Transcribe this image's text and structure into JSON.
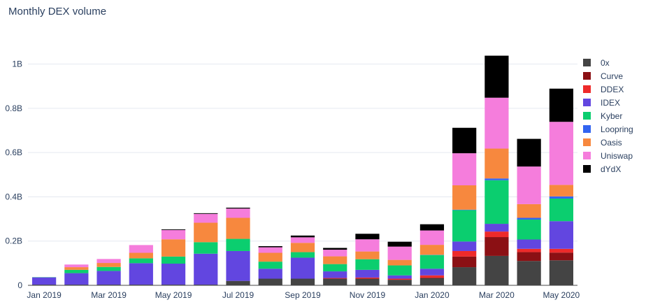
{
  "chart_data": {
    "type": "bar",
    "stacked": true,
    "title": "Monthly DEX volume",
    "xlabel": "",
    "ylabel": "",
    "ylim": [
      0,
      1100000000
    ],
    "y_ticks": [
      0,
      200000000,
      400000000,
      600000000,
      800000000,
      1000000000
    ],
    "y_tick_labels": [
      "0",
      "0.2B",
      "0.4B",
      "0.6B",
      "0.8B",
      "1B"
    ],
    "grid": true,
    "legend_position": "right",
    "categories": [
      "Jan 2019",
      "Feb 2019",
      "Mar 2019",
      "Apr 2019",
      "May 2019",
      "Jun 2019",
      "Jul 2019",
      "Aug 2019",
      "Sep 2019",
      "Oct 2019",
      "Nov 2019",
      "Dec 2019",
      "Jan 2020",
      "Feb 2020",
      "Mar 2020",
      "Apr 2020",
      "May 2020"
    ],
    "x_tick_labels": [
      {
        "index": 0,
        "label": "Jan 2019"
      },
      {
        "index": 2,
        "label": "Mar 2019"
      },
      {
        "index": 4,
        "label": "May 2019"
      },
      {
        "index": 6,
        "label": "Jul 2019"
      },
      {
        "index": 8,
        "label": "Sep 2019"
      },
      {
        "index": 10,
        "label": "Nov 2019"
      },
      {
        "index": 12,
        "label": "Jan 2020"
      },
      {
        "index": 14,
        "label": "Mar 2020"
      },
      {
        "index": 16,
        "label": "May 2020"
      }
    ],
    "series": [
      {
        "name": "0x",
        "color": "#444444",
        "values": [
          3000000,
          3000000,
          3000000,
          3000000,
          3000000,
          3000000,
          20000000,
          30000000,
          30000000,
          30000000,
          30000000,
          25000000,
          32000000,
          82000000,
          133000000,
          110000000,
          113000000
        ]
      },
      {
        "name": "Curve",
        "color": "#8b1014",
        "values": [
          0,
          0,
          0,
          0,
          0,
          0,
          0,
          0,
          0,
          0,
          0,
          0,
          3000000,
          48000000,
          85000000,
          40000000,
          35000000
        ]
      },
      {
        "name": "DDEX",
        "color": "#ee2a2a",
        "values": [
          0,
          0,
          0,
          0,
          0,
          0,
          0,
          0,
          0,
          3000000,
          5000000,
          5000000,
          10000000,
          25000000,
          25000000,
          15000000,
          17000000
        ]
      },
      {
        "name": "IDEX",
        "color": "#6246e0",
        "values": [
          33000000,
          52000000,
          62000000,
          97000000,
          95000000,
          140000000,
          135000000,
          45000000,
          95000000,
          30000000,
          35000000,
          15000000,
          30000000,
          43000000,
          35000000,
          42000000,
          125000000
        ]
      },
      {
        "name": "Kyber",
        "color": "#0bce6f",
        "values": [
          1000000,
          15000000,
          18000000,
          22000000,
          32000000,
          52000000,
          55000000,
          32000000,
          25000000,
          33000000,
          48000000,
          45000000,
          62000000,
          142000000,
          197000000,
          90000000,
          102000000
        ]
      },
      {
        "name": "Loopring",
        "color": "#3264f0",
        "values": [
          0,
          0,
          0,
          0,
          0,
          0,
          0,
          0,
          0,
          0,
          0,
          0,
          1000000,
          2000000,
          8000000,
          8000000,
          10000000
        ]
      },
      {
        "name": "Oasis",
        "color": "#f7883e",
        "values": [
          0,
          12000000,
          18000000,
          25000000,
          78000000,
          88000000,
          95000000,
          40000000,
          42000000,
          35000000,
          35000000,
          25000000,
          45000000,
          110000000,
          135000000,
          62000000,
          52000000
        ]
      },
      {
        "name": "Uniswap",
        "color": "#f57ddc",
        "values": [
          0,
          12000000,
          18000000,
          35000000,
          42000000,
          40000000,
          42000000,
          25000000,
          25000000,
          30000000,
          55000000,
          60000000,
          65000000,
          145000000,
          230000000,
          170000000,
          285000000
        ]
      },
      {
        "name": "dYdX",
        "color": "#000000",
        "values": [
          0,
          0,
          0,
          0,
          3000000,
          3000000,
          4000000,
          5000000,
          8000000,
          8000000,
          25000000,
          22000000,
          28000000,
          115000000,
          190000000,
          125000000,
          150000000
        ]
      }
    ]
  }
}
